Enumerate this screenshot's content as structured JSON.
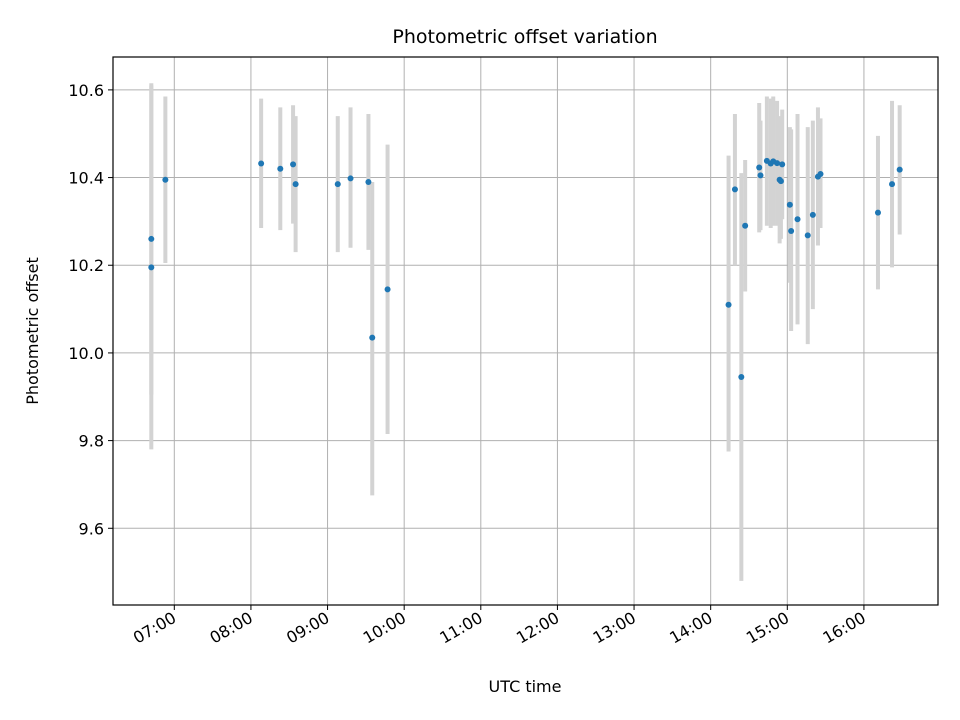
{
  "chart_data": {
    "type": "scatter",
    "title": "Photometric offset variation",
    "xlabel": "UTC time",
    "ylabel": "Photometric offset",
    "xlim": [
      "06:12",
      "16:58"
    ],
    "ylim": [
      9.425,
      10.675
    ],
    "x_ticks": [
      "07:00",
      "08:00",
      "09:00",
      "10:00",
      "11:00",
      "12:00",
      "13:00",
      "14:00",
      "15:00",
      "16:00"
    ],
    "y_ticks": [
      "9.6",
      "9.8",
      "10.0",
      "10.2",
      "10.4",
      "10.6"
    ],
    "grid": true,
    "colors": {
      "point": "#1f77b4",
      "errorbar": "#d3d3d3",
      "grid": "#b0b0b0"
    },
    "points": [
      {
        "x": "06:42",
        "y": 10.26,
        "lo": 9.905,
        "hi": 10.615
      },
      {
        "x": "06:42",
        "y": 10.195,
        "lo": 9.78,
        "hi": 10.61
      },
      {
        "x": "06:53",
        "y": 10.395,
        "lo": 10.205,
        "hi": 10.585
      },
      {
        "x": "08:08",
        "y": 10.432,
        "lo": 10.285,
        "hi": 10.58
      },
      {
        "x": "08:23",
        "y": 10.42,
        "lo": 10.28,
        "hi": 10.56
      },
      {
        "x": "08:33",
        "y": 10.43,
        "lo": 10.295,
        "hi": 10.565
      },
      {
        "x": "08:35",
        "y": 10.385,
        "lo": 10.23,
        "hi": 10.54
      },
      {
        "x": "09:08",
        "y": 10.385,
        "lo": 10.23,
        "hi": 10.54
      },
      {
        "x": "09:18",
        "y": 10.398,
        "lo": 10.24,
        "hi": 10.56
      },
      {
        "x": "09:32",
        "y": 10.39,
        "lo": 10.235,
        "hi": 10.545
      },
      {
        "x": "09:35",
        "y": 10.035,
        "lo": 9.675,
        "hi": 10.39
      },
      {
        "x": "09:47",
        "y": 10.145,
        "lo": 9.815,
        "hi": 10.475
      },
      {
        "x": "14:14",
        "y": 10.11,
        "lo": 9.775,
        "hi": 10.45
      },
      {
        "x": "14:19",
        "y": 10.373,
        "lo": 10.2,
        "hi": 10.545
      },
      {
        "x": "14:24",
        "y": 9.945,
        "lo": 9.48,
        "hi": 10.41
      },
      {
        "x": "14:27",
        "y": 10.29,
        "lo": 10.14,
        "hi": 10.44
      },
      {
        "x": "14:38",
        "y": 10.423,
        "lo": 10.275,
        "hi": 10.57
      },
      {
        "x": "14:39",
        "y": 10.405,
        "lo": 10.28,
        "hi": 10.53
      },
      {
        "x": "14:44",
        "y": 10.438,
        "lo": 10.29,
        "hi": 10.585
      },
      {
        "x": "14:47",
        "y": 10.432,
        "lo": 10.285,
        "hi": 10.58
      },
      {
        "x": "14:49",
        "y": 10.437,
        "lo": 10.29,
        "hi": 10.585
      },
      {
        "x": "14:52",
        "y": 10.433,
        "lo": 10.29,
        "hi": 10.575
      },
      {
        "x": "14:54",
        "y": 10.395,
        "lo": 10.25,
        "hi": 10.54
      },
      {
        "x": "14:55",
        "y": 10.392,
        "lo": 10.26,
        "hi": 10.525
      },
      {
        "x": "14:56",
        "y": 10.43,
        "lo": 10.305,
        "hi": 10.555
      },
      {
        "x": "15:02",
        "y": 10.338,
        "lo": 10.16,
        "hi": 10.515
      },
      {
        "x": "15:03",
        "y": 10.278,
        "lo": 10.05,
        "hi": 10.51
      },
      {
        "x": "15:08",
        "y": 10.305,
        "lo": 10.065,
        "hi": 10.545
      },
      {
        "x": "15:16",
        "y": 10.268,
        "lo": 10.02,
        "hi": 10.515
      },
      {
        "x": "15:20",
        "y": 10.315,
        "lo": 10.1,
        "hi": 10.53
      },
      {
        "x": "15:24",
        "y": 10.402,
        "lo": 10.245,
        "hi": 10.56
      },
      {
        "x": "15:26",
        "y": 10.408,
        "lo": 10.285,
        "hi": 10.535
      },
      {
        "x": "16:11",
        "y": 10.32,
        "lo": 10.145,
        "hi": 10.495
      },
      {
        "x": "16:22",
        "y": 10.385,
        "lo": 10.195,
        "hi": 10.575
      },
      {
        "x": "16:28",
        "y": 10.418,
        "lo": 10.27,
        "hi": 10.565
      }
    ]
  }
}
